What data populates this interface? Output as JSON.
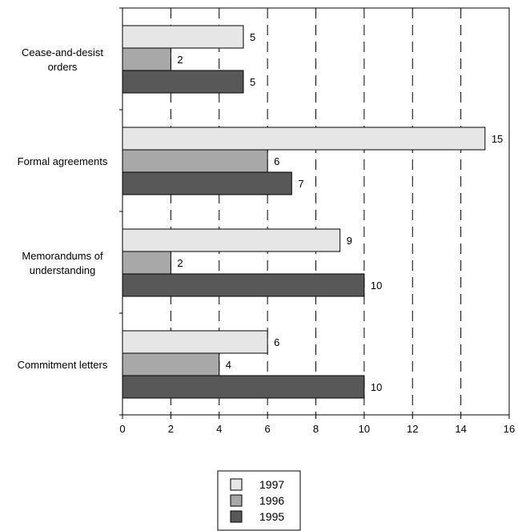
{
  "chart_data": {
    "type": "bar",
    "orientation": "horizontal",
    "title": "",
    "xlabel": "",
    "ylabel": "",
    "categories": [
      [
        "Cease-and-desist",
        "orders"
      ],
      [
        "Formal agreements"
      ],
      [
        "Memorandums of",
        "understanding"
      ],
      [
        "Commitment letters"
      ]
    ],
    "series": [
      {
        "name": "1997",
        "color": "#e6e6e6",
        "values": [
          5,
          15,
          9,
          6
        ]
      },
      {
        "name": "1996",
        "color": "#a8a8a8",
        "values": [
          2,
          6,
          2,
          4
        ]
      },
      {
        "name": "1995",
        "color": "#585858",
        "values": [
          5,
          7,
          10,
          10
        ]
      }
    ],
    "xlim": [
      0,
      16
    ],
    "xticks": [
      0,
      2,
      4,
      6,
      8,
      10,
      12,
      14,
      16
    ],
    "grid": "vertical dashed",
    "legend_position": "bottom-center"
  }
}
